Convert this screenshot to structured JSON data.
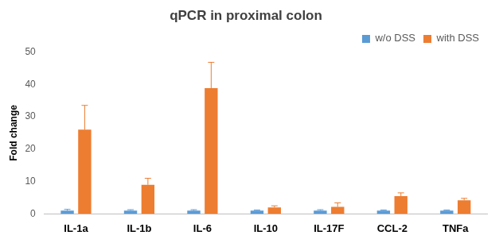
{
  "chart_data": {
    "type": "bar",
    "title": "qPCR in proximal colon",
    "y_label": "Fold change",
    "categories": [
      "IL-1a",
      "IL-1b",
      "IL-6",
      "IL-10",
      "IL-17F",
      "CCL-2",
      "TNFa"
    ],
    "series": [
      {
        "name": "w/o DSS",
        "color": "#5b9bd5",
        "values": [
          1,
          1,
          1,
          1,
          1,
          1,
          1
        ],
        "errors": [
          0.4,
          0.3,
          0.3,
          0.2,
          0.3,
          0.2,
          0.2
        ]
      },
      {
        "name": "with DSS",
        "color": "#ed7d31",
        "values": [
          26,
          9,
          38.8,
          2,
          2.2,
          5.5,
          4.2
        ],
        "errors": [
          7.5,
          2,
          8,
          0.5,
          1.2,
          1,
          0.6
        ]
      }
    ],
    "ylim": [
      0,
      50
    ],
    "yticks": [
      0,
      10,
      20,
      30,
      40,
      50
    ],
    "grid": false,
    "legend": "upper right"
  }
}
